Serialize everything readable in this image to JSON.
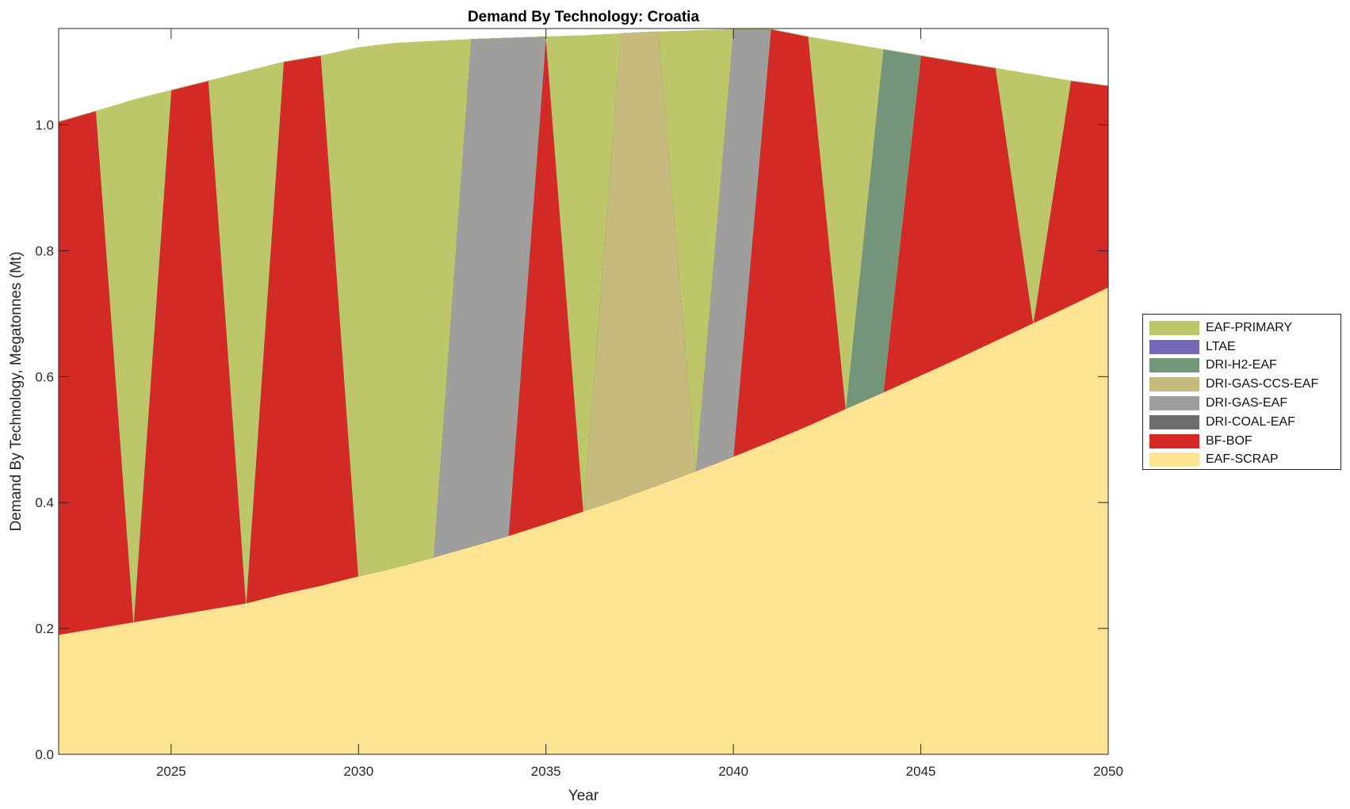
{
  "chart_data": {
    "type": "area",
    "stacked": true,
    "title": "Demand By Technology: Croatia",
    "xlabel": "Year",
    "ylabel": "Demand By Technology, Megatonnes (Mt)",
    "xlim": [
      2022,
      2050
    ],
    "ylim": [
      0,
      1.153
    ],
    "xticks": [
      2025,
      2030,
      2035,
      2040,
      2045,
      2050
    ],
    "yticks": [
      "0.0",
      "0.2",
      "0.4",
      "0.6",
      "0.8",
      "1.0"
    ],
    "grid": false,
    "legend_position": "right",
    "x": [
      2022,
      2023,
      2024,
      2025,
      2026,
      2027,
      2028,
      2029,
      2030,
      2031,
      2032,
      2033,
      2034,
      2035,
      2036,
      2037,
      2038,
      2039,
      2040,
      2041,
      2042,
      2043,
      2044,
      2045,
      2046,
      2047,
      2048,
      2049,
      2050
    ],
    "series": [
      {
        "name": "EAF-SCRAP",
        "color": "#fde392",
        "values": [
          0.19,
          0.2,
          0.21,
          0.22,
          0.23,
          0.24,
          0.255,
          0.268,
          0.283,
          0.297,
          0.313,
          0.33,
          0.347,
          0.366,
          0.386,
          0.406,
          0.428,
          0.45,
          0.473,
          0.497,
          0.522,
          0.549,
          0.575,
          0.602,
          0.629,
          0.657,
          0.685,
          0.713,
          0.742
        ]
      },
      {
        "name": "BF-BOF",
        "color": "#d42a25",
        "values": [
          0.815,
          0.822,
          0,
          0.835,
          0.84,
          0,
          0.845,
          0.842,
          0,
          0,
          0,
          0,
          0,
          0.774,
          0,
          0,
          0,
          0,
          0,
          0.655,
          0.618,
          0,
          0,
          0.508,
          0.471,
          0.433,
          0,
          0.357,
          0.32
        ]
      },
      {
        "name": "DRI-COAL-EAF",
        "color": "#6e6e6e",
        "values": [
          0,
          0,
          0,
          0,
          0,
          0,
          0,
          0,
          0,
          0,
          0,
          0,
          0,
          0,
          0,
          0,
          0,
          0,
          0,
          0,
          0,
          0,
          0,
          0,
          0,
          0,
          0,
          0,
          0
        ]
      },
      {
        "name": "DRI-GAS-EAF",
        "color": "#9e9e9c",
        "values": [
          0,
          0,
          0,
          0,
          0,
          0,
          0,
          0,
          0,
          0,
          0,
          0.806,
          0.791,
          0,
          0,
          0,
          0,
          0,
          0.679,
          0,
          0,
          0,
          0,
          0,
          0,
          0,
          0,
          0,
          0
        ]
      },
      {
        "name": "DRI-GAS-CCS-EAF",
        "color": "#c6bb7d",
        "values": [
          0,
          0,
          0,
          0,
          0,
          0,
          0,
          0,
          0,
          0,
          0,
          0,
          0,
          0,
          0,
          0.739,
          0.72,
          0,
          0,
          0,
          0,
          0,
          0,
          0,
          0,
          0,
          0,
          0,
          0
        ]
      },
      {
        "name": "DRI-H2-EAF",
        "color": "#73967a",
        "values": [
          0,
          0,
          0,
          0,
          0,
          0,
          0,
          0,
          0,
          0,
          0,
          0,
          0,
          0,
          0,
          0,
          0,
          0,
          0,
          0,
          0,
          0,
          0.545,
          0,
          0,
          0,
          0,
          0,
          0
        ]
      },
      {
        "name": "LTAE",
        "color": "#7468b8",
        "values": [
          0,
          0,
          0,
          0,
          0,
          0,
          0,
          0,
          0,
          0,
          0,
          0,
          0,
          0,
          0,
          0,
          0,
          0,
          0,
          0,
          0,
          0,
          0,
          0,
          0,
          0,
          0,
          0,
          0
        ]
      },
      {
        "name": "EAF-PRIMARY",
        "color": "#bdc76a",
        "values": [
          0,
          0,
          0.83,
          0,
          0,
          0.845,
          0,
          0,
          0.84,
          0.833,
          0.82,
          0,
          0,
          0,
          0.756,
          0,
          0,
          0.7,
          0,
          0,
          0,
          0.581,
          0,
          0,
          0,
          0,
          0.395,
          0,
          0
        ]
      }
    ],
    "legend": [
      "EAF-PRIMARY",
      "LTAE",
      "DRI-H2-EAF",
      "DRI-GAS-CCS-EAF",
      "DRI-GAS-EAF",
      "DRI-COAL-EAF",
      "BF-BOF",
      "EAF-SCRAP"
    ]
  }
}
